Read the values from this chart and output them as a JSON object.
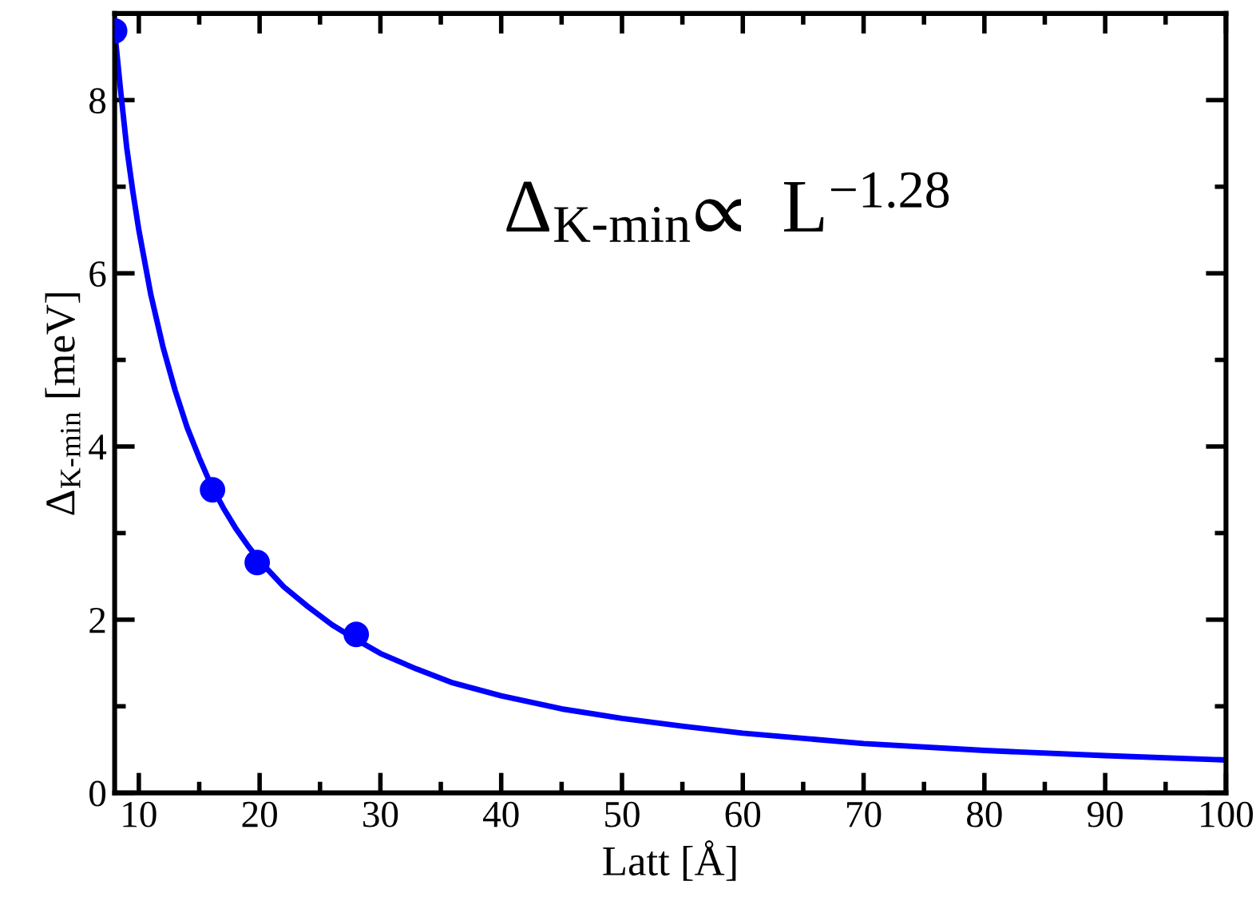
{
  "chart_data": {
    "type": "scatter",
    "xlabel": "Latt [Å]",
    "ylabel": "Δ$_{K-min}$ [meV]",
    "annotations": [
      "Δ$_{K-min}$∝  L$^{−1.28}$"
    ],
    "series": [
      {
        "color": "#0000ff",
        "marker": "circle",
        "x": [
          8,
          16.1,
          19.8,
          28
        ],
        "values": [
          8.8,
          3.5,
          2.66,
          1.83
        ]
      },
      {
        "type": "line",
        "color": "#0000ff",
        "line_style": "solid",
        "x": [
          8,
          8.5,
          9,
          9.5,
          10,
          11,
          12,
          13,
          14,
          15,
          16,
          17,
          18,
          19,
          20,
          22,
          24,
          26,
          28,
          30,
          33,
          36,
          40,
          45,
          50,
          55,
          60,
          65,
          70,
          80,
          90,
          100
        ],
        "values": [
          8.8,
          8.1,
          7.45,
          6.95,
          6.5,
          5.75,
          5.15,
          4.65,
          4.22,
          3.87,
          3.55,
          3.29,
          3.06,
          2.86,
          2.68,
          2.38,
          2.15,
          1.94,
          1.77,
          1.61,
          1.43,
          1.27,
          1.12,
          0.97,
          0.86,
          0.77,
          0.69,
          0.63,
          0.57,
          0.49,
          0.43,
          0.38
        ]
      }
    ],
    "xlim": [
      8,
      100
    ],
    "ylim": [
      0,
      9
    ],
    "xticks": [
      10,
      {
        "value": 15,
        "label": null
      },
      20,
      {
        "value": 25,
        "label": null
      },
      30,
      {
        "value": 35,
        "label": null
      },
      40,
      {
        "value": 45,
        "label": null
      },
      50,
      {
        "value": 55,
        "label": null
      },
      60,
      {
        "value": 65,
        "label": null
      },
      70,
      {
        "value": 75,
        "label": null
      },
      80,
      {
        "value": 85,
        "label": null
      },
      90,
      {
        "value": 95,
        "label": null
      },
      100
    ],
    "yticks": [
      0,
      {
        "value": 1,
        "label": null
      },
      2,
      {
        "value": 3,
        "label": null
      },
      4,
      {
        "value": 5,
        "label": null
      },
      6,
      {
        "value": 7,
        "label": null
      },
      8
    ],
    "grid": false,
    "legend": false
  }
}
